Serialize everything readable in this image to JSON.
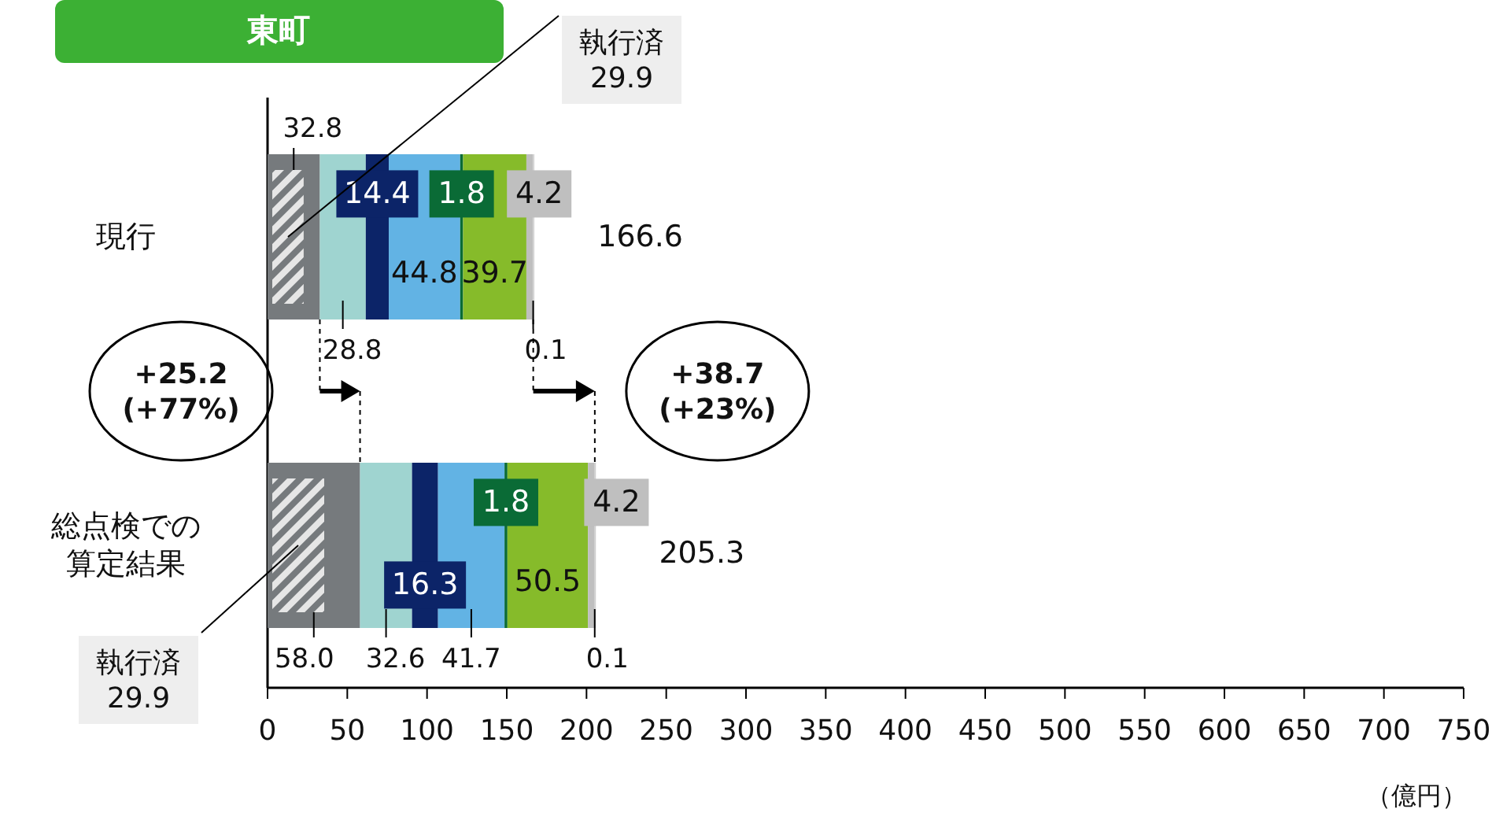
{
  "chart_data": {
    "type": "bar",
    "orientation": "horizontal",
    "stacked": true,
    "title": "東町",
    "xlabel": "（億円）",
    "categories": [
      "現行",
      "総点検での算定結果"
    ],
    "series": [
      {
        "color": "#767a7d",
        "values": [
          32.8,
          58.0
        ],
        "value_labels": [
          "32.8",
          "58.0"
        ]
      },
      {
        "color": "#9fd4d0",
        "values": [
          28.8,
          32.6
        ],
        "value_labels": [
          "28.8",
          "32.6"
        ]
      },
      {
        "color": "#0c2468",
        "values": [
          14.4,
          16.3
        ],
        "value_labels": [
          "14.4",
          "16.3"
        ]
      },
      {
        "color": "#62b3e4",
        "values": [
          44.8,
          41.7
        ],
        "value_labels": [
          "44.8",
          "41.7"
        ]
      },
      {
        "color": "#0a6b36",
        "values": [
          1.8,
          1.8
        ],
        "value_labels": [
          "1.8",
          "1.8"
        ]
      },
      {
        "color": "#86bb2a",
        "values": [
          39.7,
          50.5
        ],
        "value_labels": [
          "39.7",
          "50.5"
        ]
      },
      {
        "color": "#bfbfbf",
        "values": [
          4.2,
          4.2
        ],
        "value_labels": [
          "4.2",
          "4.2"
        ]
      },
      {
        "color": "#d0d0d0",
        "values": [
          0.1,
          0.1
        ],
        "value_labels": [
          "0.1",
          "0.1"
        ]
      }
    ],
    "totals": [
      "166.6",
      "205.3"
    ],
    "xlim": [
      0,
      750
    ],
    "xticks": [
      0,
      50,
      100,
      150,
      200,
      250,
      300,
      350,
      400,
      450,
      500,
      550,
      600,
      650,
      700,
      750
    ],
    "annotations": [
      "執行済\n29.9",
      "執行済\n29.9",
      "+25.2\n(+77%)",
      "+38.7\n(+23%)"
    ]
  }
}
